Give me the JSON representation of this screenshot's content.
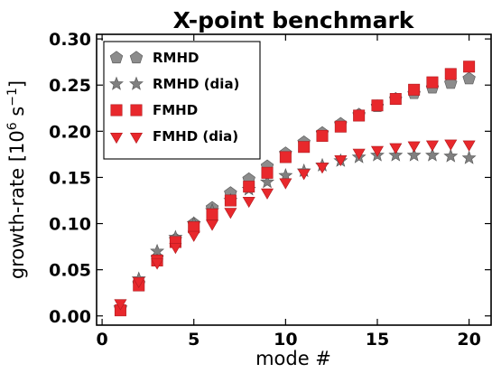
{
  "chart_data": {
    "type": "scatter",
    "title": "X-point benchmark",
    "xlabel": "mode #",
    "ylabel": "growth-rate [10^6 s^-1]",
    "ylabel_base": "growth-rate [10",
    "ylabel_exp1": "6",
    "ylabel_mid": " s",
    "ylabel_exp2": "−1",
    "ylabel_end": "]",
    "xlim": [
      -0.3,
      21.2
    ],
    "ylim": [
      -0.01,
      0.305
    ],
    "xticks": [
      0,
      5,
      10,
      15,
      20
    ],
    "xtick_labels": [
      "0",
      "5",
      "10",
      "15",
      "20"
    ],
    "yticks": [
      0.0,
      0.05,
      0.1,
      0.15,
      0.2,
      0.25,
      0.3
    ],
    "ytick_labels": [
      "0.00",
      "0.05",
      "0.10",
      "0.15",
      "0.20",
      "0.25",
      "0.30"
    ],
    "grid": false,
    "legend_position": "top-left",
    "x": [
      1,
      2,
      3,
      4,
      5,
      6,
      7,
      8,
      9,
      10,
      11,
      12,
      13,
      14,
      15,
      16,
      17,
      18,
      19,
      20
    ],
    "series": [
      {
        "name": "RMHD",
        "marker": "pentagon",
        "color": "#8c8c8c",
        "values": [
          0.008,
          0.035,
          0.063,
          0.083,
          0.1,
          0.117,
          0.133,
          0.148,
          0.162,
          0.176,
          0.188,
          0.198,
          0.208,
          0.218,
          0.227,
          0.235,
          0.241,
          0.247,
          0.252,
          0.257
        ]
      },
      {
        "name": "RMHD (dia)",
        "marker": "star",
        "color": "#808080",
        "values": [
          0.009,
          0.04,
          0.07,
          0.085,
          0.1,
          0.114,
          0.125,
          0.137,
          0.145,
          0.152,
          0.157,
          0.163,
          0.168,
          0.172,
          0.174,
          0.174,
          0.174,
          0.174,
          0.173,
          0.171
        ]
      },
      {
        "name": "FMHD",
        "marker": "square",
        "color": "#e8282c",
        "values": [
          0.006,
          0.033,
          0.06,
          0.08,
          0.096,
          0.11,
          0.125,
          0.14,
          0.155,
          0.172,
          0.183,
          0.195,
          0.205,
          0.217,
          0.228,
          0.235,
          0.245,
          0.253,
          0.262,
          0.27
        ]
      },
      {
        "name": "FMHD (dia)",
        "marker": "triangle-down",
        "color": "#e8282c",
        "values": [
          0.014,
          0.038,
          0.058,
          0.075,
          0.088,
          0.1,
          0.113,
          0.125,
          0.134,
          0.145,
          0.155,
          0.162,
          0.17,
          0.177,
          0.18,
          0.183,
          0.185,
          0.186,
          0.187,
          0.186
        ]
      }
    ]
  }
}
